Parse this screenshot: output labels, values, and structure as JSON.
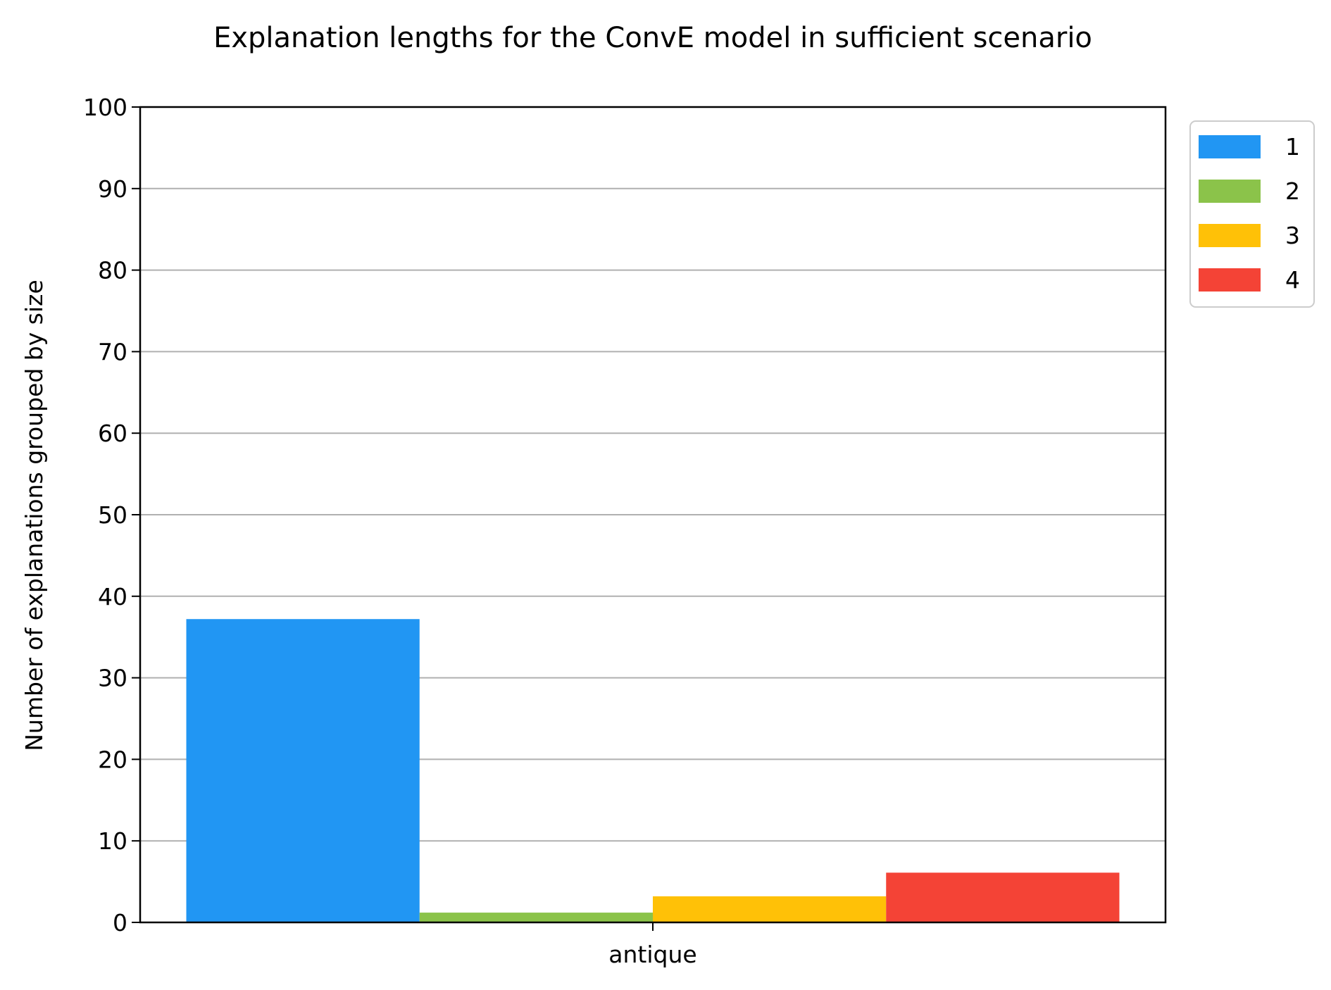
{
  "chart_data": {
    "type": "bar",
    "title": "Explanation lengths for the ConvE model in sufficient scenario",
    "xlabel": "",
    "ylabel": "Number of explanations grouped by size",
    "categories": [
      "antique"
    ],
    "series": [
      {
        "name": "1",
        "values": [
          37.2
        ],
        "color": "#2196f3"
      },
      {
        "name": "2",
        "values": [
          1.2
        ],
        "color": "#8bc34a"
      },
      {
        "name": "3",
        "values": [
          3.2
        ],
        "color": "#ffc107"
      },
      {
        "name": "4",
        "values": [
          6.1
        ],
        "color": "#f44336"
      }
    ],
    "ylim": [
      0,
      100
    ],
    "yticks": [
      "0",
      "10",
      "20",
      "30",
      "40",
      "50",
      "60",
      "70",
      "80",
      "90",
      "100"
    ],
    "grid": "horizontal",
    "legend_position": "outside-top-right"
  }
}
